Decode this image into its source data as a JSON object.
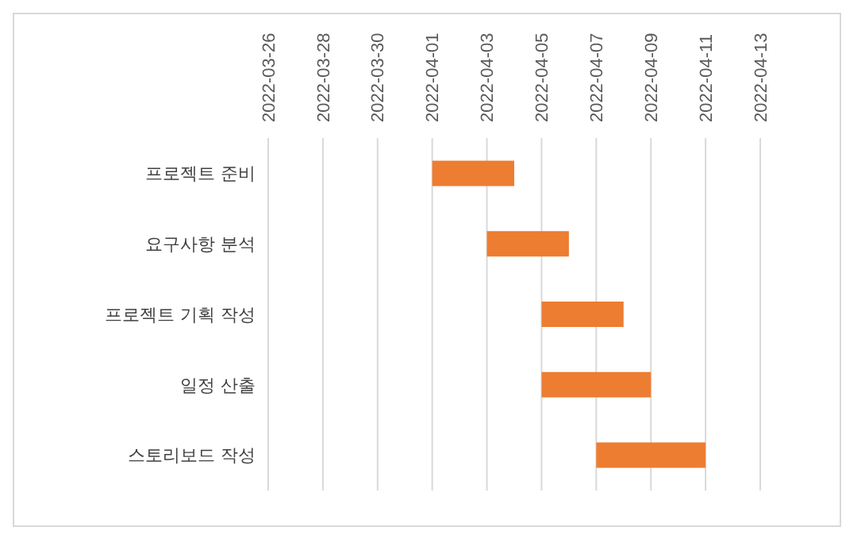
{
  "chart_data": {
    "type": "bar",
    "orientation": "horizontal",
    "categories": [
      "프로젝트 준비",
      "요구사항 분석",
      "프로젝트 기획 작성",
      "일정 산출",
      "스토리보드 작성"
    ],
    "base": [
      19083,
      19085,
      19087,
      19087,
      19089
    ],
    "values": [
      3,
      3,
      3,
      4,
      4
    ],
    "color": "#ed7d31",
    "xlim": [
      "2022-03-26",
      "2022-04-13"
    ],
    "xticks": [
      "2022-03-26",
      "2022-03-28",
      "2022-03-30",
      "2022-04-01",
      "2022-04-03",
      "2022-04-05",
      "2022-04-07",
      "2022-04-09",
      "2022-04-11",
      "2022-04-13"
    ],
    "grid": "x"
  }
}
